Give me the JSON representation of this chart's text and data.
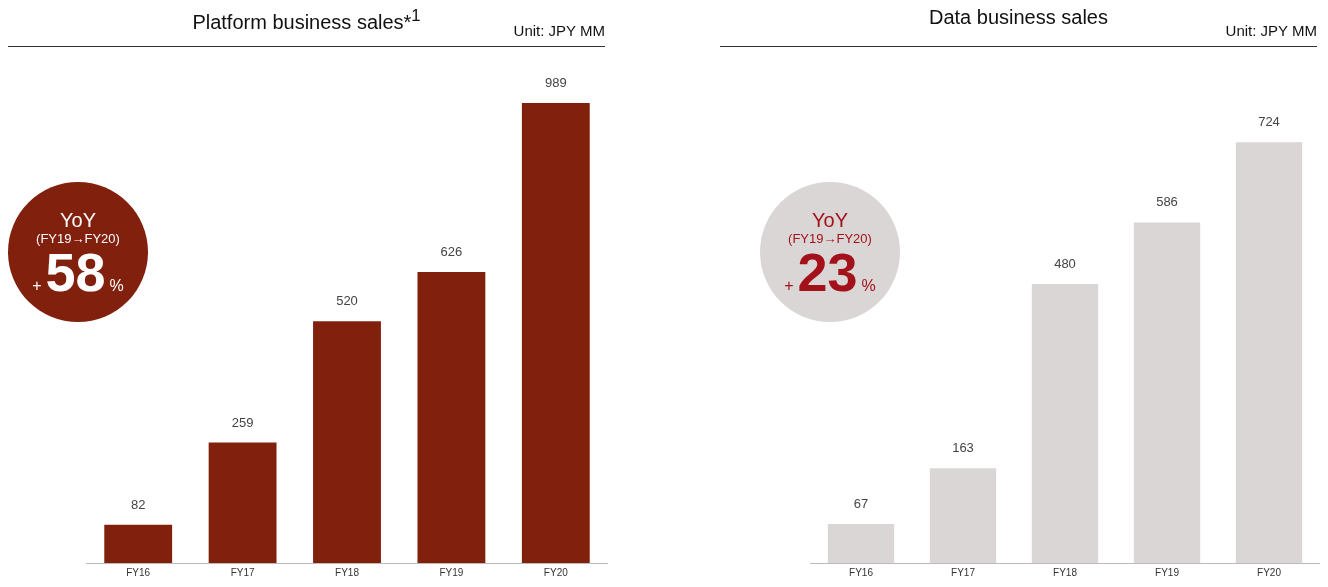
{
  "chart_data": [
    {
      "type": "bar",
      "title": "Platform business sales*$^{1}$",
      "subtitle": "Unit: JPY MM",
      "categories": [
        "FY16",
        "FY17",
        "FY18",
        "FY19",
        "FY20"
      ],
      "values": [
        82,
        259,
        520,
        626,
        989
      ],
      "color": "#82200e",
      "data_labels": true,
      "annotations": [
        "YoY",
        "(FY19→FY20)",
        "+",
        "58",
        "%"
      ]
    },
    {
      "type": "bar",
      "title": "Data business sales",
      "subtitle": "Unit: JPY MM",
      "categories": [
        "FY16",
        "FY17",
        "FY18",
        "FY19",
        "FY20"
      ],
      "values": [
        67,
        163,
        480,
        586,
        724
      ],
      "color": "#dbd6d6",
      "data_labels": true,
      "annotations": [
        "YoY",
        "(FY19→FY20)",
        "+",
        "23",
        "%"
      ]
    }
  ]
}
